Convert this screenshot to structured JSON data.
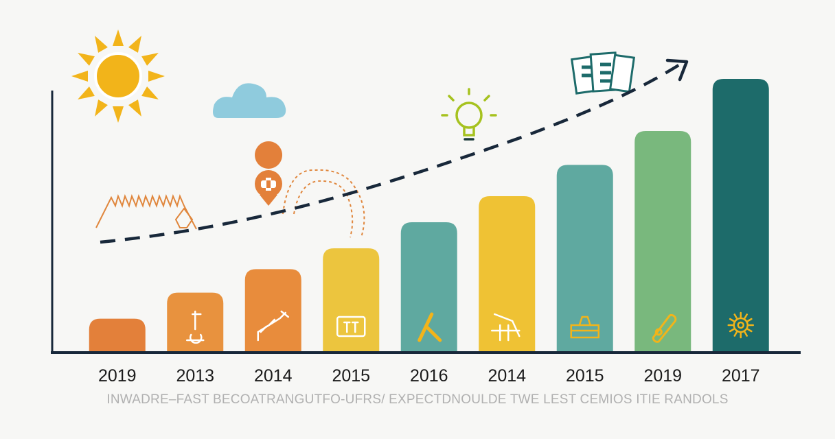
{
  "chart_data": {
    "type": "bar",
    "categories": [
      "2019",
      "2013",
      "2014",
      "2015",
      "2016",
      "2014",
      "2015",
      "2019",
      "2017"
    ],
    "values": [
      13,
      23,
      32,
      40,
      50,
      60,
      72,
      85,
      105
    ],
    "ylim": [
      0,
      110
    ],
    "grid": false,
    "legend": "none",
    "trend": "dashed rising arrow",
    "colors": [
      "#e3803a",
      "#e8923e",
      "#e88c3c",
      "#ecc53e",
      "#5fa9a0",
      "#efc234",
      "#5fa9a0",
      "#79b87d",
      "#1d6b6a"
    ],
    "caption": "INWADRE–FAST BECOATRANGUTFO-UFRS/ EXPECTDNOULDE TWE LEST CEMIOS ITIE RANDOLS"
  },
  "decor": {
    "sun_color": "#f2b41a",
    "cloud_color": "#8fcbdd",
    "bulb_color": "#a6c21f",
    "axis_color": "#18283a",
    "icons": [
      "sun-icon",
      "cloud-icon",
      "lightbulb-icon",
      "documents-icon",
      "pin-icon",
      "spring-icon",
      "dotted-path-icon"
    ],
    "bar_icons": [
      "none",
      "figure-icon",
      "tool-icon",
      "box-icon",
      "hammer-icon",
      "arrows-icon",
      "tray-icon",
      "capsule-icon",
      "gear-icon"
    ]
  }
}
